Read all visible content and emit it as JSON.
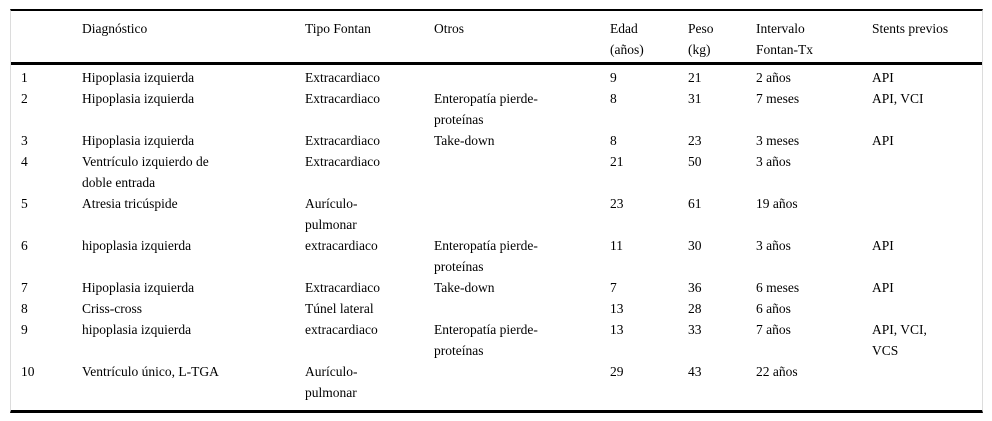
{
  "table": {
    "header": {
      "num": "",
      "diagnostico": "Diagnóstico",
      "tipo_fontan": "Tipo Fontan",
      "otros": "Otros",
      "edad": "Edad\n(años)",
      "peso": "Peso\n(kg)",
      "intervalo": "Intervalo\nFontan-Tx",
      "stents": "Stents previos"
    },
    "rows": [
      {
        "num": "1",
        "diagnostico": "Hipoplasia izquierda",
        "tipo_fontan": "Extracardiaco",
        "otros": "",
        "edad": "9",
        "peso": "21",
        "intervalo": "2 años",
        "stents": "API"
      },
      {
        "num": "2",
        "diagnostico": "Hipoplasia izquierda",
        "tipo_fontan": "Extracardiaco",
        "otros": "Enteropatía pierde-\nproteínas",
        "edad": "8",
        "peso": "31",
        "intervalo": "7 meses",
        "stents": "API, VCI"
      },
      {
        "num": "3",
        "diagnostico": "Hipoplasia izquierda",
        "tipo_fontan": "Extracardiaco",
        "otros": "Take-down",
        "edad": "8",
        "peso": "23",
        "intervalo": "3 meses",
        "stents": "API"
      },
      {
        "num": "4",
        "diagnostico": "Ventrículo izquierdo de\ndoble entrada",
        "tipo_fontan": "Extracardiaco",
        "otros": "",
        "edad": "21",
        "peso": "50",
        "intervalo": "3 años",
        "stents": ""
      },
      {
        "num": "5",
        "diagnostico": "Atresia tricúspide",
        "tipo_fontan": "Aurículo-\npulmonar",
        "otros": "",
        "edad": "23",
        "peso": "61",
        "intervalo": "19 años",
        "stents": ""
      },
      {
        "num": "6",
        "diagnostico": "hipoplasia izquierda",
        "tipo_fontan": "extracardiaco",
        "otros": "Enteropatía pierde-\nproteínas",
        "edad": "11",
        "peso": "30",
        "intervalo": "3 años",
        "stents": "API"
      },
      {
        "num": "7",
        "diagnostico": "Hipoplasia izquierda",
        "tipo_fontan": "Extracardiaco",
        "otros": "Take-down",
        "edad": "7",
        "peso": "36",
        "intervalo": "6 meses",
        "stents": "API"
      },
      {
        "num": "8",
        "diagnostico": "Criss-cross",
        "tipo_fontan": "Túnel lateral",
        "otros": "",
        "edad": "13",
        "peso": "28",
        "intervalo": "6 años",
        "stents": ""
      },
      {
        "num": "9",
        "diagnostico": "hipoplasia izquierda",
        "tipo_fontan": "extracardiaco",
        "otros": "Enteropatía pierde-\nproteínas",
        "edad": "13",
        "peso": "33",
        "intervalo": "7 años",
        "stents": "API, VCI,\nVCS"
      },
      {
        "num": "10",
        "diagnostico": "Ventrículo único, L-TGA",
        "tipo_fontan": "Aurículo-\npulmonar",
        "otros": "",
        "edad": "29",
        "peso": "43",
        "intervalo": "22 años",
        "stents": ""
      }
    ]
  }
}
